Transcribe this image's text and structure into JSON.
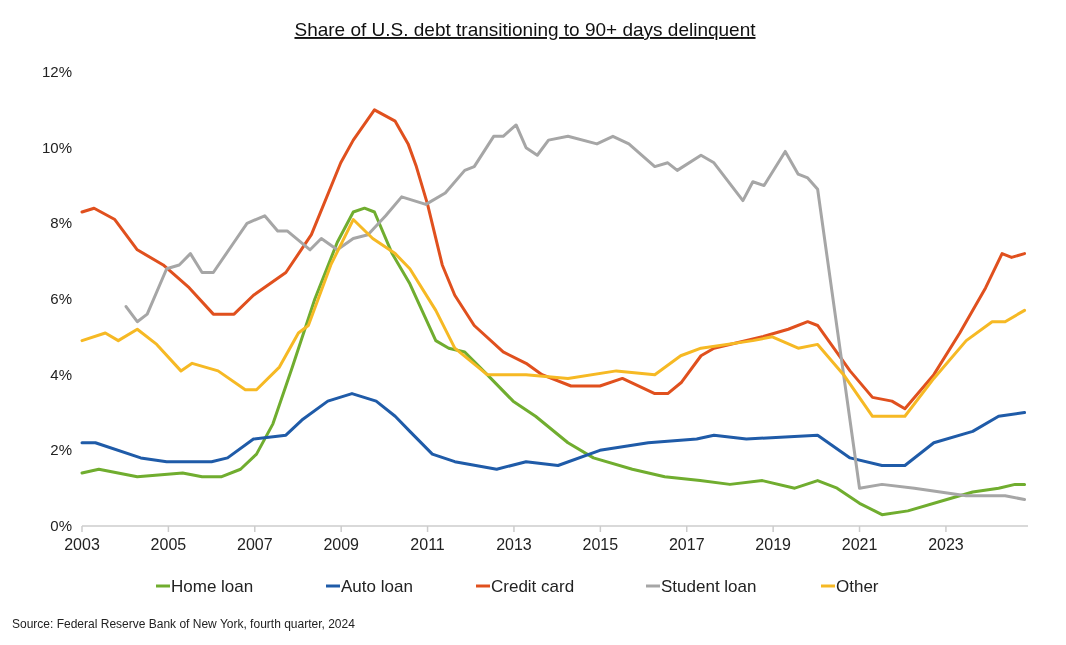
{
  "chart_data": {
    "type": "line",
    "title": "Share of U.S. debt transitioning to 90+ days delinquent",
    "xlim": [
      2003,
      2024.9
    ],
    "xticks": [
      2003,
      2005,
      2007,
      2009,
      2011,
      2013,
      2015,
      2017,
      2019,
      2021,
      2023
    ],
    "ylim": [
      0,
      12
    ],
    "yticks": [
      {
        "value": 0,
        "label": "0%"
      },
      {
        "value": 2,
        "label": "2%"
      },
      {
        "value": 4,
        "label": "4%"
      },
      {
        "value": 6,
        "label": "6%"
      },
      {
        "value": 8,
        "label": "8%"
      },
      {
        "value": 10,
        "label": "10%"
      },
      {
        "value": 12,
        "label": "12%"
      }
    ],
    "grid": false,
    "legend": "bottom",
    "marker": "none",
    "line_style": "solid",
    "series": [
      {
        "name": "Home loan",
        "color": "#70ad2f",
        "x": [
          2003,
          2003.39,
          2004.28,
          2005.33,
          2005.78,
          2006.22,
          2006.67,
          2007.04,
          2007.42,
          2007.87,
          2008.39,
          2008.91,
          2009.28,
          2009.54,
          2009.77,
          2010.18,
          2010.59,
          2011.19,
          2011.49,
          2011.86,
          2012.38,
          2012.98,
          2013.5,
          2014.25,
          2014.84,
          2015.74,
          2016.49,
          2017.31,
          2018,
          2018.75,
          2019.5,
          2020.03,
          2020.48,
          2021,
          2021.52,
          2022.12,
          2023.02,
          2023.62,
          2024.22,
          2024.6,
          2024.82
        ],
        "values": [
          1.4,
          1.5,
          1.3,
          1.4,
          1.3,
          1.3,
          1.5,
          1.9,
          2.7,
          4.2,
          6.0,
          7.5,
          8.3,
          8.4,
          8.3,
          7.2,
          6.4,
          4.9,
          4.7,
          4.6,
          4.0,
          3.3,
          2.9,
          2.2,
          1.8,
          1.5,
          1.3,
          1.2,
          1.1,
          1.2,
          1.0,
          1.2,
          1.0,
          0.6,
          0.3,
          0.4,
          0.7,
          0.9,
          1.0,
          1.1,
          1.1
        ]
      },
      {
        "name": "Auto loan",
        "color": "#1f5ba8",
        "x": [
          2003,
          2003.31,
          2004.36,
          2004.96,
          2006,
          2006.37,
          2006.97,
          2007.72,
          2008.09,
          2008.69,
          2009.25,
          2009.81,
          2010.25,
          2010.59,
          2011.11,
          2011.63,
          2012.6,
          2013.28,
          2014.02,
          2014.99,
          2016.11,
          2017.23,
          2017.63,
          2018.38,
          2020.03,
          2020.78,
          2021.52,
          2022.05,
          2022.72,
          2023.62,
          2024.22,
          2024.82
        ],
        "values": [
          2.2,
          2.2,
          1.8,
          1.7,
          1.7,
          1.8,
          2.3,
          2.4,
          2.8,
          3.3,
          3.5,
          3.3,
          2.9,
          2.5,
          1.9,
          1.7,
          1.5,
          1.7,
          1.6,
          2.0,
          2.2,
          2.3,
          2.4,
          2.3,
          2.4,
          1.8,
          1.6,
          1.6,
          2.2,
          2.5,
          2.9,
          3.0
        ]
      },
      {
        "name": "Credit card",
        "color": "#e0501e",
        "x": [
          2003,
          2003.28,
          2003.76,
          2004.28,
          2004.88,
          2005.48,
          2006.04,
          2006.52,
          2006.97,
          2007.72,
          2008.31,
          2008.99,
          2009.28,
          2009.77,
          2010.25,
          2010.55,
          2010.74,
          2011,
          2011.34,
          2011.63,
          2012.08,
          2012.75,
          2013.28,
          2013.65,
          2014.32,
          2014.99,
          2015.51,
          2016.26,
          2016.56,
          2016.88,
          2017.33,
          2017.63,
          2018.75,
          2019.35,
          2019.8,
          2020.03,
          2020.78,
          2021.3,
          2021.75,
          2022.05,
          2022.72,
          2023.32,
          2023.92,
          2024.3,
          2024.52,
          2024.82
        ],
        "values": [
          8.3,
          8.4,
          8.1,
          7.3,
          6.9,
          6.3,
          5.6,
          5.6,
          6.1,
          6.7,
          7.7,
          9.6,
          10.2,
          11.0,
          10.7,
          10.1,
          9.5,
          8.5,
          6.9,
          6.1,
          5.3,
          4.6,
          4.3,
          4.0,
          3.7,
          3.7,
          3.9,
          3.5,
          3.5,
          3.8,
          4.5,
          4.7,
          5.0,
          5.2,
          5.4,
          5.3,
          4.1,
          3.4,
          3.3,
          3.1,
          4.0,
          5.1,
          6.3,
          7.2,
          7.1,
          7.2
        ]
      },
      {
        "name": "Student loan",
        "color": "#a6a6a6",
        "x": [
          2004.02,
          2004.28,
          2004.51,
          2004.96,
          2005.25,
          2005.51,
          2005.78,
          2006.04,
          2006.52,
          2006.82,
          2007.23,
          2007.53,
          2007.75,
          2008.28,
          2008.54,
          2008.91,
          2009.28,
          2009.62,
          2010.03,
          2010.4,
          2010.96,
          2011.41,
          2011.86,
          2012.08,
          2012.53,
          2012.75,
          2013.05,
          2013.28,
          2013.54,
          2013.8,
          2014.25,
          2014.92,
          2015.29,
          2015.66,
          2016.26,
          2016.56,
          2016.78,
          2017.33,
          2017.63,
          2018.3,
          2018.53,
          2018.79,
          2019.28,
          2019.58,
          2019.8,
          2020.03,
          2021,
          2021.52,
          2022.27,
          2022.87,
          2023.47,
          2024.37,
          2024.82
        ],
        "values": [
          5.8,
          5.4,
          5.6,
          6.8,
          6.9,
          7.2,
          6.7,
          6.7,
          7.5,
          8.0,
          8.2,
          7.8,
          7.8,
          7.3,
          7.6,
          7.3,
          7.6,
          7.7,
          8.2,
          8.7,
          8.5,
          8.8,
          9.4,
          9.5,
          10.3,
          10.3,
          10.6,
          10.0,
          9.8,
          10.2,
          10.3,
          10.1,
          10.3,
          10.1,
          9.5,
          9.6,
          9.4,
          9.8,
          9.6,
          8.6,
          9.1,
          9.0,
          9.9,
          9.3,
          9.2,
          8.9,
          1.0,
          1.1,
          1.0,
          0.9,
          0.8,
          0.8,
          0.7
        ]
      },
      {
        "name": "Other",
        "color": "#f6b924",
        "x": [
          2003,
          2003.54,
          2003.84,
          2004.28,
          2004.73,
          2005.29,
          2005.55,
          2006.15,
          2006.78,
          2007.04,
          2007.57,
          2008.01,
          2008.24,
          2008.76,
          2009.28,
          2009.73,
          2010.25,
          2010.59,
          2011.19,
          2011.63,
          2012.38,
          2012.75,
          2013.28,
          2014.25,
          2015.37,
          2016.26,
          2016.86,
          2017.33,
          2018.53,
          2018.98,
          2019.58,
          2020.03,
          2020.63,
          2021.3,
          2021.67,
          2022.05,
          2022.72,
          2023.47,
          2024.07,
          2024.37,
          2024.82
        ],
        "values": [
          4.9,
          5.1,
          4.9,
          5.2,
          4.8,
          4.1,
          4.3,
          4.1,
          3.6,
          3.6,
          4.2,
          5.1,
          5.3,
          6.9,
          8.1,
          7.6,
          7.2,
          6.8,
          5.7,
          4.7,
          4.0,
          4.0,
          4.0,
          3.9,
          4.1,
          4.0,
          4.5,
          4.7,
          4.9,
          5.0,
          4.7,
          4.8,
          4.0,
          2.9,
          2.9,
          2.9,
          3.9,
          4.9,
          5.4,
          5.4,
          5.7
        ]
      }
    ],
    "annotations": [
      "Source: Federal Reserve Bank of New York, fourth quarter, 2024"
    ]
  }
}
